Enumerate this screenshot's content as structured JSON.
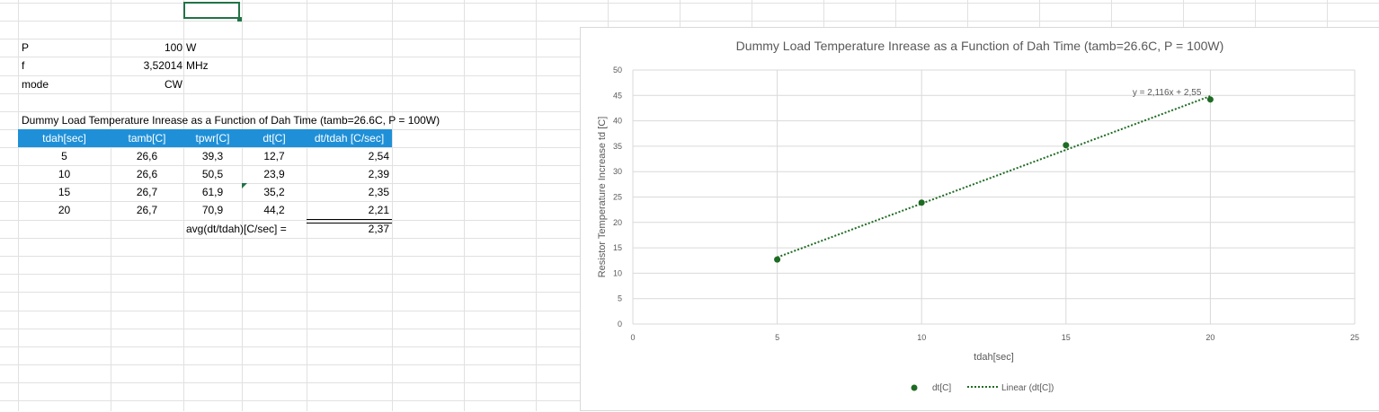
{
  "params": [
    {
      "label": "P",
      "value": "100",
      "unit": "W"
    },
    {
      "label": "f",
      "value": "3,52014",
      "unit": "MHz"
    },
    {
      "label": "mode",
      "value": "CW",
      "unit": ""
    }
  ],
  "table": {
    "title": "Dummy Load Temperature Inrease as a Function of Dah Time (tamb=26.6C, P = 100W)",
    "headers": [
      "tdah[sec]",
      "tamb[C]",
      "tpwr[C]",
      "dt[C]",
      "dt/tdah [C/sec]"
    ],
    "rows": [
      [
        "5",
        "26,6",
        "39,3",
        "12,7",
        "2,54"
      ],
      [
        "10",
        "26,6",
        "50,5",
        "23,9",
        "2,39"
      ],
      [
        "15",
        "26,7",
        "61,9",
        "35,2",
        "2,35"
      ],
      [
        "20",
        "26,7",
        "70,9",
        "44,2",
        "2,21"
      ]
    ],
    "avg_label": "avg(dt/tdah)[C/sec] =",
    "avg_value": "2,37"
  },
  "chart_data": {
    "type": "scatter",
    "title": "Dummy Load Temperature Inrease as a Function of Dah Time (tamb=26.6C, P = 100W)",
    "xlabel": "tdah[sec]",
    "ylabel": "Resistor Temperature Increase td [C]",
    "xlim": [
      0,
      25
    ],
    "ylim": [
      0,
      50
    ],
    "xticks": [
      0,
      5,
      10,
      15,
      20,
      25
    ],
    "yticks": [
      0,
      5,
      10,
      15,
      20,
      25,
      30,
      35,
      40,
      45,
      50
    ],
    "grid": true,
    "legend_position": "bottom",
    "series": [
      {
        "name": "dt[C]",
        "x": [
          5,
          10,
          15,
          20
        ],
        "y": [
          12.7,
          23.9,
          35.2,
          44.2
        ],
        "color": "#1e6b23"
      }
    ],
    "trendline": {
      "name": "Linear (dt[C])",
      "slope": 2.116,
      "intercept": 2.55,
      "label": "y = 2,116x + 2,55",
      "color": "#1e6b23"
    }
  }
}
